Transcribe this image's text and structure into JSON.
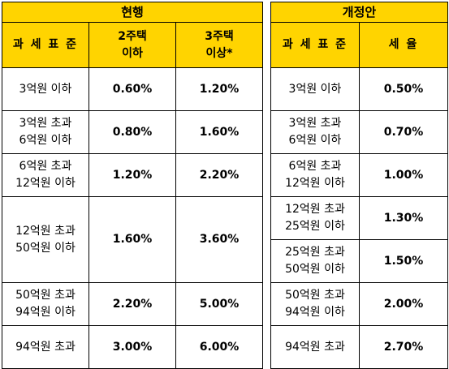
{
  "current": {
    "title": "현행",
    "headers": {
      "base": "과 세 표 준",
      "two_homes_1": "2주택",
      "two_homes_2": "이하",
      "three_homes_1": "3주택",
      "three_homes_2": "이상*"
    },
    "rows": [
      {
        "base_1": "3억원 이하",
        "base_2": "",
        "two": "0.60%",
        "three": "1.20%"
      },
      {
        "base_1": "3억원 초과",
        "base_2": "6억원 이하",
        "two": "0.80%",
        "three": "1.60%"
      },
      {
        "base_1": "6억원 초과",
        "base_2": "12억원 이하",
        "two": "1.20%",
        "three": "2.20%"
      },
      {
        "base_1": "12억원 초과",
        "base_2": "50억원 이하",
        "two": "1.60%",
        "three": "3.60%"
      },
      {
        "base_1": "50억원 초과",
        "base_2": "94억원 이하",
        "two": "2.20%",
        "three": "5.00%"
      },
      {
        "base_1": "94억원 초과",
        "base_2": "",
        "two": "3.00%",
        "three": "6.00%"
      }
    ]
  },
  "proposed": {
    "title": "개정안",
    "headers": {
      "base": "과 세 표 준",
      "rate": "세 율"
    },
    "rows": [
      {
        "base_1": "3억원 이하",
        "base_2": "",
        "rate": "0.50%"
      },
      {
        "base_1": "3억원 초과",
        "base_2": "6억원 이하",
        "rate": "0.70%"
      },
      {
        "base_1": "6억원 초과",
        "base_2": "12억원 이하",
        "rate": "1.00%"
      },
      {
        "base_1": "12억원 초과",
        "base_2": "25억원 이하",
        "rate": "1.30%"
      },
      {
        "base_1": "25억원 초과",
        "base_2": "50억원 이하",
        "rate": "1.50%"
      },
      {
        "base_1": "50억원 초과",
        "base_2": "94억원 이하",
        "rate": "2.00%"
      },
      {
        "base_1": "94억원 초과",
        "base_2": "",
        "rate": "2.70%"
      }
    ]
  },
  "colors": {
    "header_bg": "#ffd400",
    "border": "#000000"
  }
}
